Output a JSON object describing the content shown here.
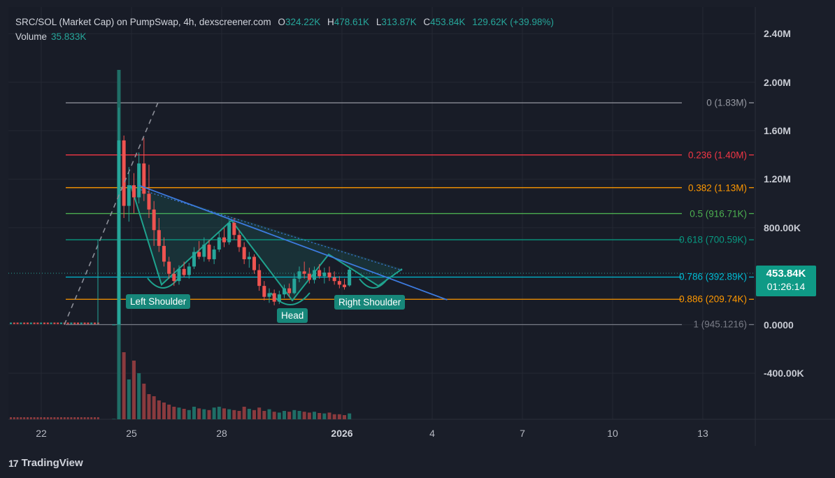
{
  "header": {
    "symbol": "SRC/SOL (Market Cap) on PumpSwap, 4h, dexscreener.com",
    "o_label": "O",
    "o_value": "324.22K",
    "h_label": "H",
    "h_value": "478.61K",
    "l_label": "L",
    "l_value": "313.87K",
    "c_label": "C",
    "c_value": "453.84K",
    "change": "129.62K (+39.98%)",
    "volume_label": "Volume",
    "volume_value": "35.833K"
  },
  "price_badge": {
    "price": "453.84K",
    "countdown": "01:26:14"
  },
  "brand": "TradingView",
  "patterns": {
    "left": "Left Shoulder",
    "head": "Head",
    "right": "Right Shoulder"
  },
  "chart_data": {
    "type": "candlestick",
    "title": "SRC/SOL (Market Cap) on PumpSwap, 4h, dexscreener.com",
    "y_ticks": [
      "2.40M",
      "2.00M",
      "1.60M",
      "1.20M",
      "800.00K",
      "0.0000",
      "-400.00K"
    ],
    "y_tick_values": [
      2400000,
      2000000,
      1600000,
      1200000,
      800000,
      0,
      -400000
    ],
    "x_ticks": [
      "22",
      "25",
      "28",
      "2026",
      "4",
      "7",
      "10",
      "13"
    ],
    "x_tick_dates": [
      "2025-12-22",
      "2025-12-25",
      "2025-12-28",
      "2026-01-01",
      "2026-01-04",
      "2026-01-07",
      "2026-01-10",
      "2026-01-13"
    ],
    "ylim": [
      -780000,
      2620000
    ],
    "colors": {
      "up": "#26a69a",
      "down": "#ef5350",
      "trend": "#3d7be0",
      "pattern": "#1fa38e"
    },
    "fib_levels": [
      {
        "ratio": "0",
        "label": "0 (1.83M)",
        "value": 1830000,
        "color": "#9598a1"
      },
      {
        "ratio": "0.236",
        "label": "0.236 (1.40M)",
        "value": 1400000,
        "color": "#f23645"
      },
      {
        "ratio": "0.382",
        "label": "0.382 (1.13M)",
        "value": 1130000,
        "color": "#ff9800"
      },
      {
        "ratio": "0.5",
        "label": "0.5 (916.71K)",
        "value": 916710,
        "color": "#4caf50"
      },
      {
        "ratio": "0.618",
        "label": "0.618 (700.59K)",
        "value": 700590,
        "color": "#089981"
      },
      {
        "ratio": "0.786",
        "label": "0.786 (392.89K)",
        "value": 392890,
        "color": "#00bcd4"
      },
      {
        "ratio": "0.886",
        "label": "0.886 (209.74K)",
        "value": 209740,
        "color": "#ff9800"
      },
      {
        "ratio": "1",
        "label": "1 (945.1216)",
        "value": 945.12,
        "color": "#787b86"
      }
    ],
    "candles": [
      {
        "t": "2025-12-24T08",
        "o": 1000,
        "h": 3000,
        "l": 900,
        "c": 1500
      },
      {
        "t": "2025-12-24T12",
        "o": 1500,
        "h": 1790000,
        "l": 1000,
        "c": 1520000
      },
      {
        "t": "2025-12-24T16",
        "o": 1520000,
        "h": 1560000,
        "l": 880000,
        "c": 980000
      },
      {
        "t": "2025-12-24T20",
        "o": 980000,
        "h": 1300000,
        "l": 850000,
        "c": 1150000
      },
      {
        "t": "2025-12-25T00",
        "o": 1150000,
        "h": 1250000,
        "l": 920000,
        "c": 1050000
      },
      {
        "t": "2025-12-25T04",
        "o": 1050000,
        "h": 1420000,
        "l": 1000000,
        "c": 1330000
      },
      {
        "t": "2025-12-25T08",
        "o": 1330000,
        "h": 1540000,
        "l": 1020000,
        "c": 1080000
      },
      {
        "t": "2025-12-25T12",
        "o": 1080000,
        "h": 1320000,
        "l": 880000,
        "c": 950000
      },
      {
        "t": "2025-12-25T16",
        "o": 950000,
        "h": 1020000,
        "l": 650000,
        "c": 780000
      },
      {
        "t": "2025-12-25T20",
        "o": 780000,
        "h": 880000,
        "l": 600000,
        "c": 650000
      },
      {
        "t": "2025-12-26T00",
        "o": 650000,
        "h": 720000,
        "l": 480000,
        "c": 520000
      },
      {
        "t": "2025-12-26T04",
        "o": 520000,
        "h": 560000,
        "l": 380000,
        "c": 420000
      },
      {
        "t": "2025-12-26T08",
        "o": 420000,
        "h": 470000,
        "l": 320000,
        "c": 360000
      },
      {
        "t": "2025-12-26T12",
        "o": 360000,
        "h": 490000,
        "l": 330000,
        "c": 460000
      },
      {
        "t": "2025-12-26T16",
        "o": 460000,
        "h": 520000,
        "l": 390000,
        "c": 410000
      },
      {
        "t": "2025-12-26T20",
        "o": 410000,
        "h": 510000,
        "l": 380000,
        "c": 480000
      },
      {
        "t": "2025-12-27T00",
        "o": 480000,
        "h": 640000,
        "l": 460000,
        "c": 600000
      },
      {
        "t": "2025-12-27T04",
        "o": 600000,
        "h": 690000,
        "l": 540000,
        "c": 560000
      },
      {
        "t": "2025-12-27T08",
        "o": 560000,
        "h": 720000,
        "l": 520000,
        "c": 660000
      },
      {
        "t": "2025-12-27T12",
        "o": 660000,
        "h": 700000,
        "l": 520000,
        "c": 540000
      },
      {
        "t": "2025-12-27T16",
        "o": 540000,
        "h": 650000,
        "l": 500000,
        "c": 620000
      },
      {
        "t": "2025-12-27T20",
        "o": 620000,
        "h": 760000,
        "l": 600000,
        "c": 720000
      },
      {
        "t": "2025-12-28T00",
        "o": 720000,
        "h": 800000,
        "l": 640000,
        "c": 680000
      },
      {
        "t": "2025-12-28T04",
        "o": 680000,
        "h": 880000,
        "l": 660000,
        "c": 840000
      },
      {
        "t": "2025-12-28T08",
        "o": 840000,
        "h": 880000,
        "l": 700000,
        "c": 740000
      },
      {
        "t": "2025-12-28T12",
        "o": 740000,
        "h": 780000,
        "l": 600000,
        "c": 640000
      },
      {
        "t": "2025-12-28T16",
        "o": 640000,
        "h": 680000,
        "l": 500000,
        "c": 540000
      },
      {
        "t": "2025-12-28T20",
        "o": 540000,
        "h": 600000,
        "l": 470000,
        "c": 560000
      },
      {
        "t": "2025-12-29T00",
        "o": 560000,
        "h": 580000,
        "l": 420000,
        "c": 450000
      },
      {
        "t": "2025-12-29T04",
        "o": 450000,
        "h": 500000,
        "l": 280000,
        "c": 320000
      },
      {
        "t": "2025-12-29T08",
        "o": 320000,
        "h": 360000,
        "l": 200000,
        "c": 230000
      },
      {
        "t": "2025-12-29T12",
        "o": 230000,
        "h": 300000,
        "l": 180000,
        "c": 260000
      },
      {
        "t": "2025-12-29T16",
        "o": 260000,
        "h": 290000,
        "l": 160000,
        "c": 190000
      },
      {
        "t": "2025-12-29T20",
        "o": 190000,
        "h": 280000,
        "l": 170000,
        "c": 250000
      },
      {
        "t": "2025-12-30T00",
        "o": 250000,
        "h": 330000,
        "l": 220000,
        "c": 300000
      },
      {
        "t": "2025-12-30T04",
        "o": 300000,
        "h": 340000,
        "l": 230000,
        "c": 260000
      },
      {
        "t": "2025-12-30T08",
        "o": 260000,
        "h": 420000,
        "l": 250000,
        "c": 380000
      },
      {
        "t": "2025-12-30T12",
        "o": 380000,
        "h": 480000,
        "l": 350000,
        "c": 440000
      },
      {
        "t": "2025-12-30T16",
        "o": 440000,
        "h": 520000,
        "l": 380000,
        "c": 420000
      },
      {
        "t": "2025-12-30T20",
        "o": 420000,
        "h": 470000,
        "l": 340000,
        "c": 370000
      },
      {
        "t": "2025-12-31T00",
        "o": 370000,
        "h": 480000,
        "l": 340000,
        "c": 450000
      },
      {
        "t": "2025-12-31T04",
        "o": 450000,
        "h": 500000,
        "l": 380000,
        "c": 400000
      },
      {
        "t": "2025-12-31T08",
        "o": 400000,
        "h": 470000,
        "l": 340000,
        "c": 430000
      },
      {
        "t": "2025-12-31T12",
        "o": 430000,
        "h": 480000,
        "l": 360000,
        "c": 390000
      },
      {
        "t": "2025-12-31T16",
        "o": 390000,
        "h": 440000,
        "l": 330000,
        "c": 360000
      },
      {
        "t": "2025-12-31T20",
        "o": 360000,
        "h": 400000,
        "l": 300000,
        "c": 330000
      },
      {
        "t": "2026-01-01T00",
        "o": 330000,
        "h": 380000,
        "l": 290000,
        "c": 310000
      },
      {
        "t": "2026-01-01T04",
        "o": 324220,
        "h": 478610,
        "l": 313870,
        "c": 453840
      }
    ],
    "volume": [
      1,
      120,
      160,
      95,
      140,
      110,
      85,
      60,
      55,
      45,
      40,
      35,
      30,
      28,
      25,
      22,
      30,
      26,
      24,
      22,
      28,
      30,
      26,
      24,
      22,
      20,
      30,
      25,
      22,
      28,
      20,
      24,
      18,
      16,
      20,
      18,
      22,
      20,
      18,
      16,
      18,
      15,
      14,
      16,
      12,
      12,
      10,
      14
    ],
    "trendline": [
      {
        "t": "2025-12-25T04",
        "y": 1150000
      },
      {
        "t": "2026-01-04T12",
        "y": 205000
      }
    ],
    "pattern_polyline": [
      1150000,
      330000,
      860000,
      200000,
      580000,
      320000,
      460000
    ]
  }
}
